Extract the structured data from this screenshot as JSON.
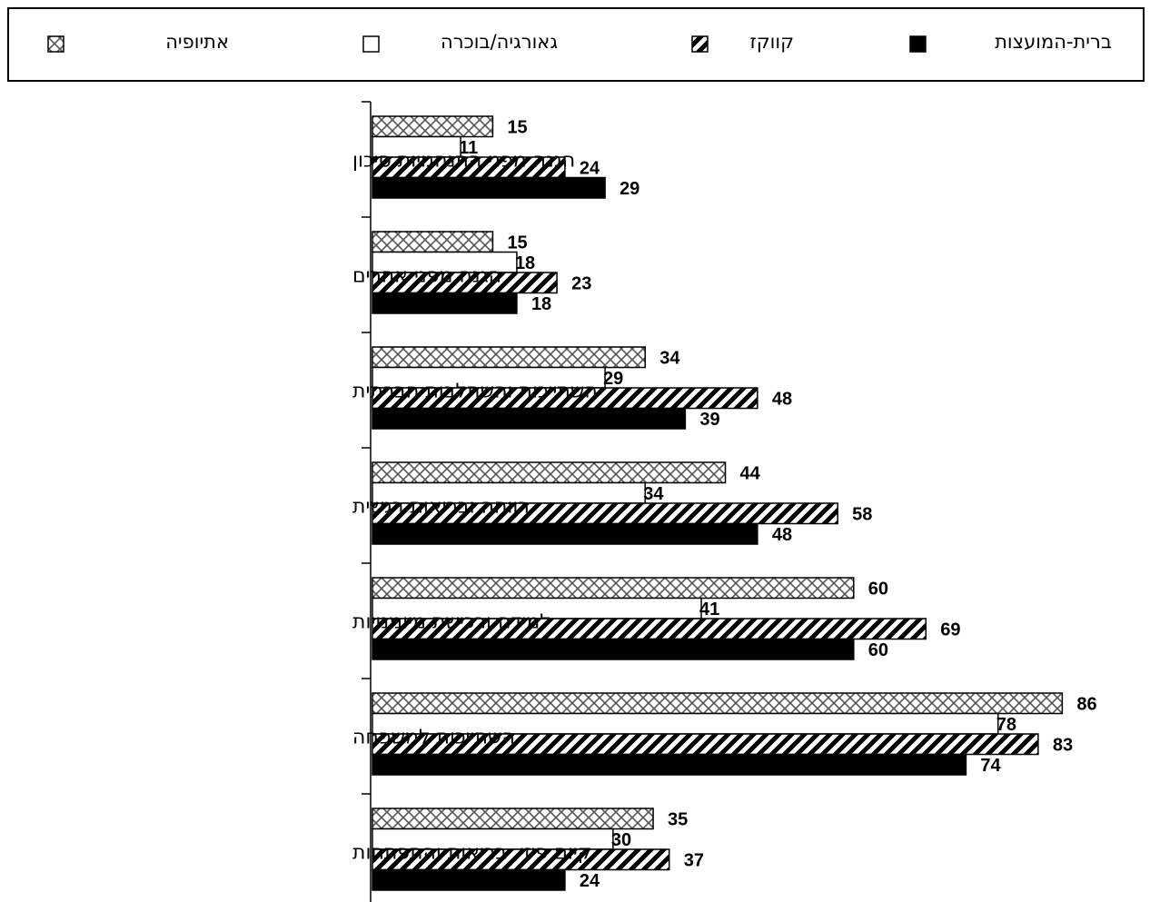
{
  "chart_data": {
    "type": "bar",
    "orientation": "horizontal",
    "xlim": [
      0,
      100
    ],
    "grid": false,
    "legend_position": "top",
    "categories": [
      "הגנה מפני התנהגויות סיכון",
      "הגנה מפני אחרים",
      "השתייכות והשתלבות חברתית",
      "רווחה ובריאות רגשית",
      "למידה ורכישת מיומנויות",
      "השתייכות למשפחה",
      "קיום פיזי, בריאות והתפתחות"
    ],
    "series": [
      {
        "name": "אתיופיה",
        "pattern": "crosshatch",
        "color": "#9a9a9a",
        "values": [
          15,
          15,
          34,
          44,
          60,
          86,
          35
        ]
      },
      {
        "name": "גאורגיה/בוכרה",
        "pattern": "solid",
        "color": "#ffffff",
        "values": [
          11,
          18,
          29,
          34,
          41,
          78,
          30
        ]
      },
      {
        "name": "קווקז",
        "pattern": "diagonal-stripes",
        "color": "#000000",
        "values": [
          24,
          23,
          48,
          58,
          69,
          83,
          37
        ]
      },
      {
        "name": "ברית-המועצות",
        "pattern": "solid",
        "color": "#000000",
        "values": [
          29,
          18,
          39,
          48,
          60,
          74,
          24
        ]
      }
    ]
  }
}
